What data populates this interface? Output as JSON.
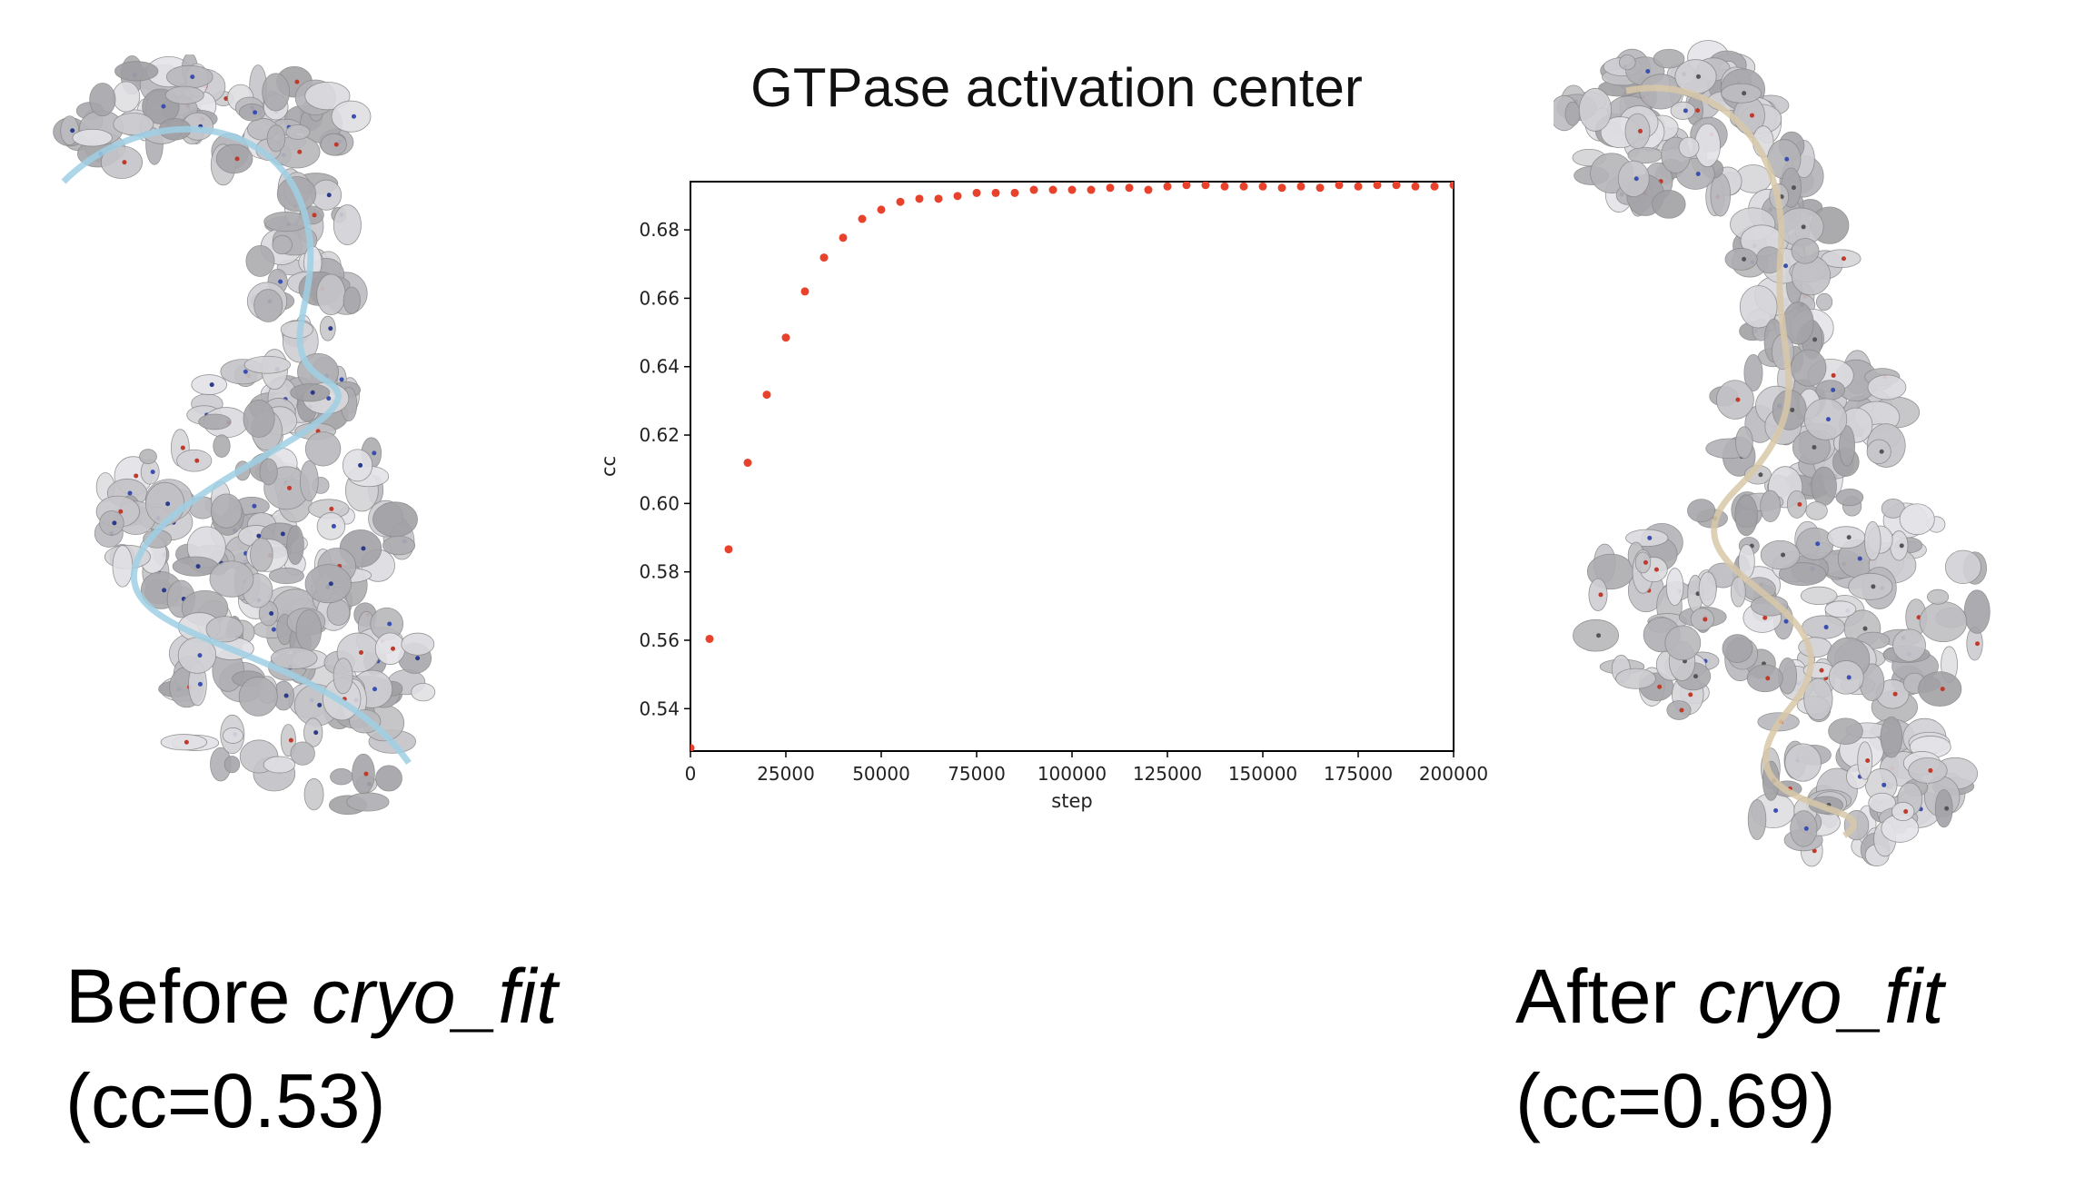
{
  "title": "GTPase activation center",
  "left_caption": {
    "line1_prefix": "Before ",
    "line1_italic": "cryo_fit",
    "line2": "(cc=0.53)"
  },
  "right_caption": {
    "line1_prefix": "After ",
    "line1_italic": "cryo_fit",
    "line2": "(cc=0.69)"
  },
  "left_image": {
    "description_icon": "molecule-density-map-before",
    "ribbon_color": "#9fd0e4"
  },
  "right_image": {
    "description_icon": "molecule-density-map-after",
    "ribbon_color": "#d8c8a8"
  },
  "chart_data": {
    "type": "scatter",
    "title": "GTPase activation center",
    "xlabel": "step",
    "ylabel": "cc",
    "xlim": [
      0,
      200000
    ],
    "ylim": [
      0.5276,
      0.6941
    ],
    "xticks": [
      "0",
      "25000",
      "50000",
      "75000",
      "100000",
      "125000",
      "150000",
      "175000",
      "200000"
    ],
    "yticks": [
      "0.54",
      "0.56",
      "0.58",
      "0.60",
      "0.62",
      "0.64",
      "0.66",
      "0.68"
    ],
    "grid": false,
    "marker_color": "#e8412c",
    "x": [
      0,
      5000,
      10000,
      15000,
      20000,
      25000,
      30000,
      35000,
      40000,
      45000,
      50000,
      55000,
      60000,
      65000,
      70000,
      75000,
      80000,
      85000,
      90000,
      95000,
      100000,
      105000,
      110000,
      115000,
      120000,
      125000,
      130000,
      135000,
      140000,
      145000,
      150000,
      155000,
      160000,
      165000,
      170000,
      175000,
      180000,
      185000,
      190000,
      195000,
      200000
    ],
    "y": [
      0.5285,
      0.5604,
      0.5866,
      0.6119,
      0.6318,
      0.6485,
      0.662,
      0.6719,
      0.6777,
      0.6832,
      0.6859,
      0.6882,
      0.6891,
      0.6891,
      0.6899,
      0.6908,
      0.6908,
      0.6908,
      0.6917,
      0.6917,
      0.6917,
      0.6917,
      0.6923,
      0.6923,
      0.6917,
      0.6927,
      0.6931,
      0.6931,
      0.6927,
      0.6927,
      0.6927,
      0.6923,
      0.6927,
      0.6923,
      0.6931,
      0.6927,
      0.6931,
      0.6931,
      0.6927,
      0.6927,
      0.6931
    ]
  }
}
